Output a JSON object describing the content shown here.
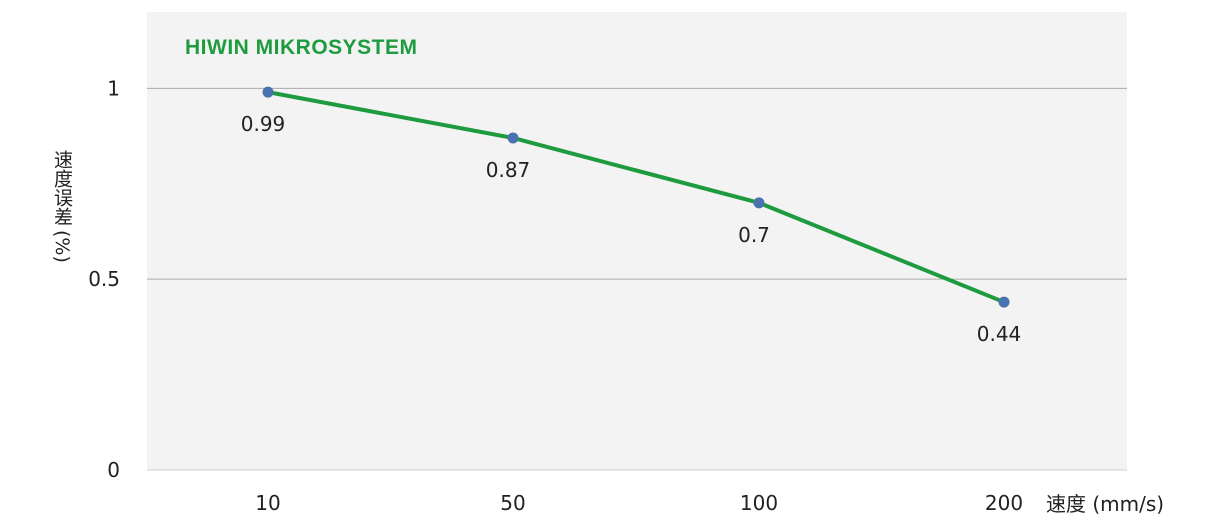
{
  "brand": {
    "name": "HIWIN MIKROSYSTEM",
    "color": "#1f9b3f"
  },
  "chart_data": {
    "type": "line",
    "categories": [
      "10",
      "50",
      "100",
      "200"
    ],
    "series": [
      {
        "values": [
          0.99,
          0.87,
          0.7,
          0.44
        ],
        "labels": [
          "0.99",
          "0.87",
          "0.7",
          "0.44"
        ]
      }
    ],
    "ylabel": "速度误差",
    "ylabel_unit": "(%)",
    "xlabel": "速度 (mm/s)",
    "ylim": [
      0,
      1.2
    ],
    "yticks": [
      "0",
      "0.5",
      "1"
    ],
    "ytick_values": [
      0,
      0.5,
      1
    ],
    "grid": true,
    "colors": {
      "line": "#1f9b3f",
      "marker": "#4a72b0",
      "plot_bg": "#f3f3f3",
      "grid": "#aaaaaa"
    }
  }
}
